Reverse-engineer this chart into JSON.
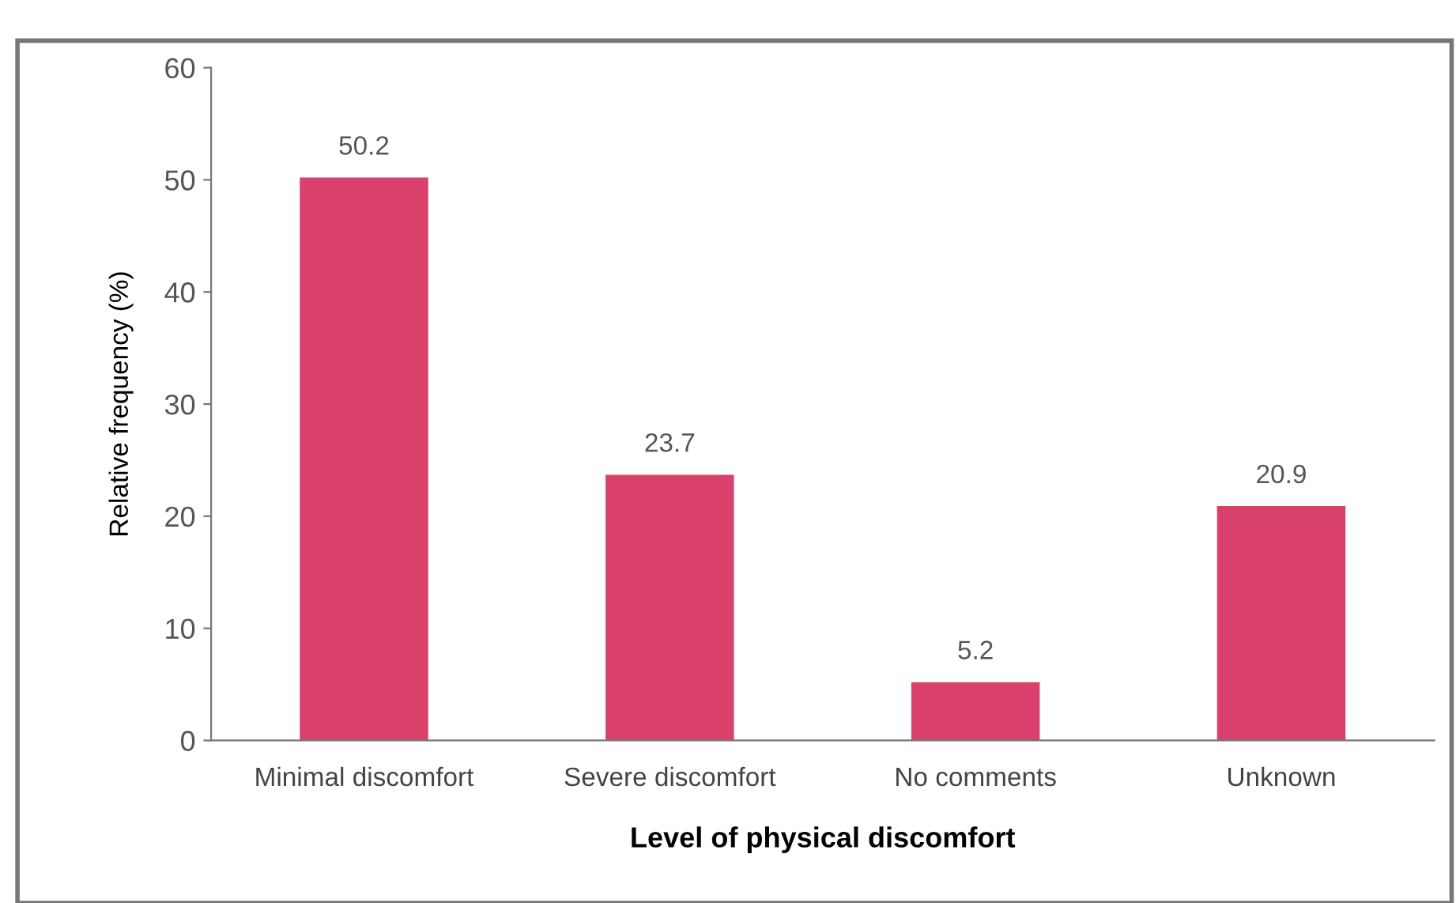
{
  "chart_data": {
    "type": "bar",
    "xlabel": "Level of physical discomfort",
    "ylabel": "Relative frequency (%)",
    "categories": [
      "Minimal discomfort",
      "Severe discomfort",
      "No comments",
      "Unknown"
    ],
    "values": [
      50.2,
      23.7,
      5.2,
      20.9
    ],
    "color": "#d9406b",
    "ylim": [
      0,
      60
    ],
    "yticks": [
      0,
      10,
      20,
      30,
      40,
      50,
      60
    ],
    "grid": false,
    "data_labels": true
  }
}
